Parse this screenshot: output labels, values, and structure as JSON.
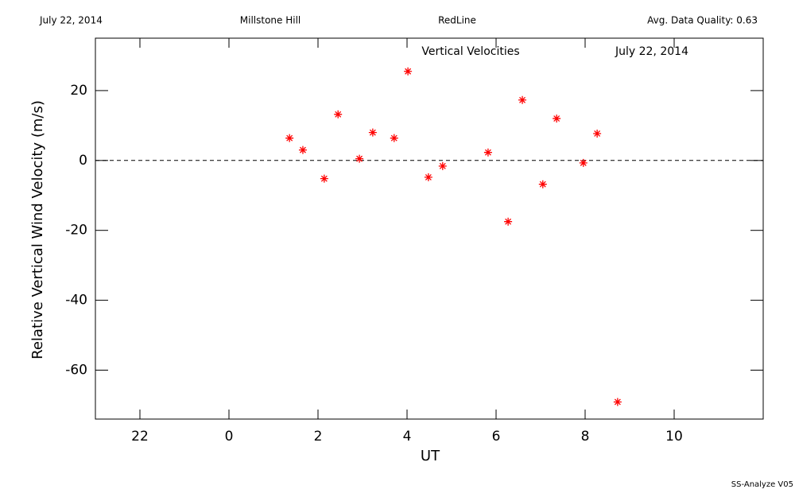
{
  "header": {
    "date": "July 22, 2014",
    "site": "Millstone Hill",
    "instrument": "RedLine",
    "quality": "Avg. Data Quality: 0.63"
  },
  "chart_data": {
    "type": "scatter",
    "title": "Vertical Velocities",
    "subtitle": "July 22, 2014",
    "x_label": "UT",
    "y_label": "Relative Vertical Wind Velocity (m/s)",
    "x": [
      1.36,
      1.66,
      2.14,
      2.45,
      2.93,
      3.23,
      3.71,
      4.02,
      4.48,
      4.8,
      5.82,
      6.27,
      6.59,
      7.05,
      7.36,
      7.96,
      8.27,
      8.73
    ],
    "values": [
      6.4,
      3.0,
      -5.2,
      13.2,
      0.5,
      8.0,
      6.4,
      25.5,
      -4.8,
      -1.6,
      2.3,
      -17.5,
      17.3,
      -6.8,
      12.0,
      -0.7,
      7.7,
      -69.1
    ],
    "color": "#ff0000",
    "xlim": [
      -3,
      12
    ],
    "xticks": [
      {
        "value": -2,
        "label": "22"
      },
      0,
      2,
      4,
      6,
      8,
      10
    ],
    "ylim": [
      -74,
      35
    ],
    "yticks": [
      -60,
      -40,
      -20,
      0,
      20
    ],
    "zero_line": 0
  },
  "footer": "SS-Analyze V05"
}
